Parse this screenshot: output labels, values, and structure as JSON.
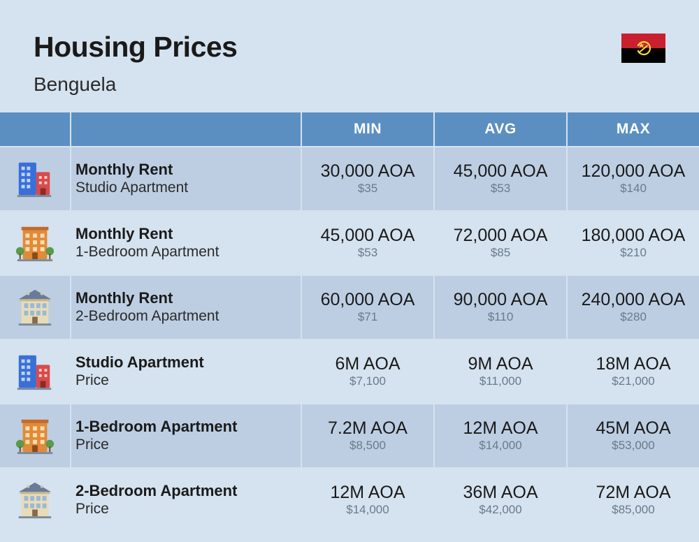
{
  "header": {
    "title": "Housing Prices",
    "subtitle": "Benguela",
    "flag": {
      "top_color": "#c8202e",
      "bottom_color": "#000000",
      "emblem_color": "#f8d84a"
    }
  },
  "table": {
    "columns": [
      "MIN",
      "AVG",
      "MAX"
    ],
    "header_bg": "#5b8fc2",
    "header_fg": "#ffffff",
    "row_alt_bg_1": "#bdcee3",
    "row_alt_bg_2": "#d5e2ef",
    "border_color": "#d5e2ef",
    "label_main_fontsize": 22,
    "label_sub_fontsize": 21,
    "val_main_fontsize": 25,
    "val_sub_fontsize": 17,
    "val_sub_color": "#6a7a8a",
    "rows": [
      {
        "icon": "building-blue",
        "label_main": "Monthly Rent",
        "label_sub": "Studio Apartment",
        "min": {
          "main": "30,000 AOA",
          "sub": "$35"
        },
        "avg": {
          "main": "45,000 AOA",
          "sub": "$53"
        },
        "max": {
          "main": "120,000 AOA",
          "sub": "$140"
        }
      },
      {
        "icon": "building-orange",
        "label_main": "Monthly Rent",
        "label_sub": "1-Bedroom Apartment",
        "min": {
          "main": "45,000 AOA",
          "sub": "$53"
        },
        "avg": {
          "main": "72,000 AOA",
          "sub": "$85"
        },
        "max": {
          "main": "180,000 AOA",
          "sub": "$210"
        }
      },
      {
        "icon": "house-beige",
        "label_main": "Monthly Rent",
        "label_sub": "2-Bedroom Apartment",
        "min": {
          "main": "60,000 AOA",
          "sub": "$71"
        },
        "avg": {
          "main": "90,000 AOA",
          "sub": "$110"
        },
        "max": {
          "main": "240,000 AOA",
          "sub": "$280"
        }
      },
      {
        "icon": "building-blue",
        "label_main": "Studio Apartment",
        "label_sub": "Price",
        "min": {
          "main": "6M AOA",
          "sub": "$7,100"
        },
        "avg": {
          "main": "9M AOA",
          "sub": "$11,000"
        },
        "max": {
          "main": "18M AOA",
          "sub": "$21,000"
        }
      },
      {
        "icon": "building-orange",
        "label_main": "1-Bedroom Apartment",
        "label_sub": "Price",
        "min": {
          "main": "7.2M AOA",
          "sub": "$8,500"
        },
        "avg": {
          "main": "12M AOA",
          "sub": "$14,000"
        },
        "max": {
          "main": "45M AOA",
          "sub": "$53,000"
        }
      },
      {
        "icon": "house-beige",
        "label_main": "2-Bedroom Apartment",
        "label_sub": "Price",
        "min": {
          "main": "12M AOA",
          "sub": "$14,000"
        },
        "avg": {
          "main": "36M AOA",
          "sub": "$42,000"
        },
        "max": {
          "main": "72M AOA",
          "sub": "$85,000"
        }
      }
    ]
  },
  "icons": {
    "building-blue": {
      "primary": "#3a6fd8",
      "secondary": "#d94a4a"
    },
    "building-orange": {
      "primary": "#e08a3a",
      "secondary": "#5a9a4a"
    },
    "house-beige": {
      "primary": "#d8c89a",
      "secondary": "#6a7a9a"
    }
  },
  "background_color": "#d5e2ef"
}
